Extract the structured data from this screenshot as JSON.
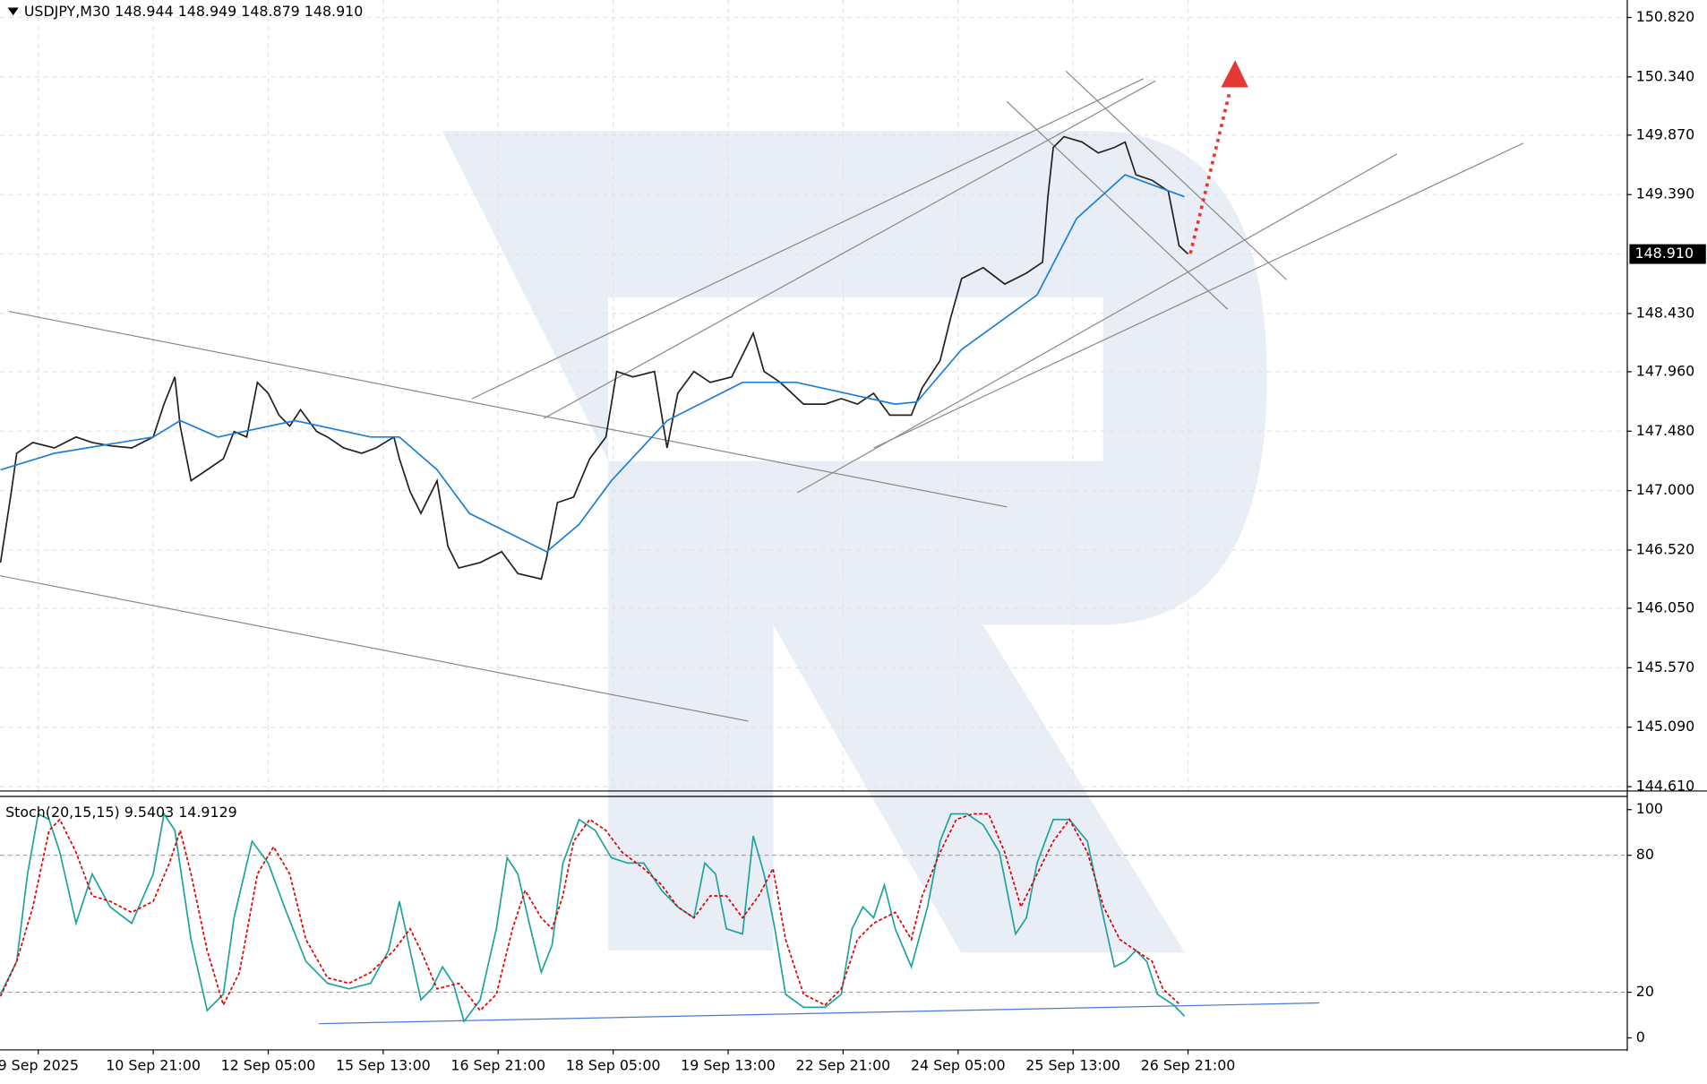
{
  "chart_data": [
    {
      "type": "line",
      "title": "USDJPY,M30  148.944 148.949 148.879 148.910",
      "grid": true,
      "xlim": [
        -21.3,
        884.5
      ],
      "ylim": [
        144.575,
        150.961
      ],
      "yticks": [
        {
          "value": 150.82,
          "label": "150.820"
        },
        {
          "value": 150.34,
          "label": "150.340"
        },
        {
          "value": 149.87,
          "label": "149.870"
        },
        {
          "value": 149.39,
          "label": "149.390"
        },
        {
          "value": 148.43,
          "label": "148.430"
        },
        {
          "value": 147.96,
          "label": "147.960"
        },
        {
          "value": 147.48,
          "label": "147.480"
        },
        {
          "value": 147,
          "label": "147.000"
        },
        {
          "value": 146.52,
          "label": "146.520"
        },
        {
          "value": 146.05,
          "label": "146.050"
        },
        {
          "value": 145.57,
          "label": "145.570"
        },
        {
          "value": 145.09,
          "label": "145.090"
        },
        {
          "value": 144.61,
          "label": "144.610"
        }
      ],
      "price_label": {
        "value": 148.91,
        "label": "148.910"
      },
      "series": [
        {
          "color": "#222222",
          "x": [
            -21,
            -15,
            -12,
            -3,
            9,
            21,
            30,
            40,
            52,
            64,
            70,
            76,
            79,
            85,
            94,
            103,
            109,
            116,
            122,
            128,
            134,
            140,
            146,
            155,
            161,
            170,
            180,
            188,
            198,
            201,
            207,
            213,
            222,
            228,
            234,
            246,
            258,
            267,
            280,
            283,
            289,
            298,
            307,
            316,
            322,
            331,
            343,
            350,
            356,
            365,
            374,
            386,
            398,
            404,
            413,
            426,
            438,
            447,
            456,
            465,
            474,
            486,
            492,
            502,
            508,
            514,
            526,
            538,
            550,
            559,
            562,
            565,
            571,
            581,
            590,
            599,
            605,
            611,
            620,
            629,
            635,
            640
          ],
          "values": [
            146.419,
            146.992,
            147.301,
            147.389,
            147.345,
            147.433,
            147.389,
            147.362,
            147.345,
            147.433,
            147.698,
            147.918,
            147.521,
            147.08,
            147.168,
            147.257,
            147.477,
            147.433,
            147.874,
            147.786,
            147.609,
            147.521,
            147.653,
            147.477,
            147.433,
            147.345,
            147.301,
            147.345,
            147.433,
            147.257,
            146.992,
            146.816,
            147.08,
            146.551,
            146.375,
            146.419,
            146.507,
            146.33,
            146.286,
            146.463,
            146.904,
            146.948,
            147.257,
            147.433,
            147.962,
            147.918,
            147.962,
            147.345,
            147.786,
            147.962,
            147.874,
            147.918,
            148.271,
            147.962,
            147.874,
            147.698,
            147.698,
            147.742,
            147.698,
            147.786,
            147.609,
            147.609,
            147.83,
            148.05,
            148.403,
            148.712,
            148.8,
            148.668,
            148.756,
            148.844,
            149.373,
            149.77,
            149.858,
            149.814,
            149.726,
            149.77,
            149.814,
            149.55,
            149.506,
            149.418,
            148.977,
            148.91
          ]
        },
        {
          "color": "#1e7fd6",
          "x": [
            -21,
            9,
            64,
            79,
            100,
            143,
            185,
            201,
            222,
            240,
            283,
            301,
            319,
            350,
            392,
            422,
            477,
            489,
            514,
            556,
            578,
            605,
            638
          ],
          "values": [
            147.168,
            147.301,
            147.433,
            147.565,
            147.433,
            147.565,
            147.433,
            147.433,
            147.168,
            146.816,
            146.507,
            146.727,
            147.08,
            147.565,
            147.874,
            147.874,
            147.698,
            147.715,
            148.139,
            148.58,
            149.197,
            149.55,
            149.373
          ]
        }
      ]
    },
    {
      "type": "line",
      "title": "Stoch(20,15,15) 9.5403 14.9129",
      "grid": false,
      "xlim": [
        -21.3,
        884.5
      ],
      "ylim": [
        -4.8,
        105.3
      ],
      "yticks": [
        0,
        20,
        80,
        100
      ],
      "levels": [
        20,
        80
      ],
      "xticks": [
        {
          "value": 0,
          "label": "9 Sep 2025"
        },
        {
          "value": 64,
          "label": "10 Sep 21:00"
        },
        {
          "value": 128,
          "label": "12 Sep 05:00"
        },
        {
          "value": 192,
          "label": "15 Sep 13:00"
        },
        {
          "value": 256,
          "label": "16 Sep 21:00"
        },
        {
          "value": 320,
          "label": "18 Sep 05:00"
        },
        {
          "value": 384,
          "label": "19 Sep 13:00"
        },
        {
          "value": 448,
          "label": "22 Sep 21:00"
        },
        {
          "value": 512,
          "label": "24 Sep 05:00"
        },
        {
          "value": 576,
          "label": "25 Sep 13:00"
        },
        {
          "value": 640,
          "label": "26 Sep 21:00"
        }
      ],
      "series": [
        {
          "color": "#20a39a",
          "x": [
            -21,
            -12,
            -6,
            0,
            6,
            12,
            21,
            30,
            40,
            52,
            64,
            70,
            76,
            85,
            94,
            103,
            109,
            119,
            128,
            137,
            149,
            161,
            173,
            185,
            195,
            201,
            207,
            213,
            219,
            225,
            231,
            237,
            246,
            255,
            261,
            267,
            274,
            280,
            286,
            292,
            301,
            310,
            319,
            328,
            337,
            347,
            356,
            365,
            371,
            377,
            383,
            392,
            398,
            404,
            410,
            416,
            426,
            438,
            447,
            453,
            459,
            465,
            471,
            477,
            486,
            495,
            502,
            508,
            517,
            526,
            535,
            544,
            550,
            556,
            565,
            574,
            584,
            593,
            599,
            605,
            611,
            617,
            623,
            632,
            638
          ],
          "values": [
            19.1,
            33.5,
            71.8,
            98.1,
            95.7,
            81.3,
            50.2,
            71.8,
            57.4,
            50.2,
            71.8,
            98.1,
            90.9,
            43.1,
            12.0,
            19.1,
            52.6,
            86.1,
            76.6,
            57.4,
            33.5,
            23.9,
            21.5,
            23.9,
            38.3,
            59.8,
            38.3,
            16.7,
            21.5,
            31.1,
            23.9,
            7.2,
            16.7,
            47.8,
            78.9,
            71.8,
            47.8,
            28.7,
            40.7,
            76.6,
            95.7,
            90.9,
            78.9,
            76.6,
            76.6,
            64.6,
            57.4,
            52.6,
            76.6,
            71.8,
            47.8,
            45.5,
            88.5,
            71.8,
            47.8,
            19.1,
            13.4,
            13.4,
            19.1,
            47.8,
            57.4,
            52.6,
            67.0,
            47.8,
            31.1,
            57.4,
            86.1,
            98.1,
            98.1,
            93.3,
            81.3,
            45.5,
            52.6,
            76.6,
            95.7,
            95.7,
            86.1,
            52.6,
            31.1,
            33.5,
            38.3,
            33.5,
            19.1,
            14.4,
            9.5
          ]
        },
        {
          "color": "#e00000",
          "dash": true,
          "x": [
            -21,
            -12,
            -3,
            6,
            12,
            21,
            30,
            40,
            52,
            64,
            73,
            79,
            85,
            94,
            103,
            112,
            122,
            131,
            140,
            149,
            161,
            173,
            185,
            198,
            207,
            213,
            222,
            234,
            246,
            255,
            264,
            271,
            280,
            286,
            292,
            298,
            307,
            316,
            325,
            337,
            347,
            356,
            365,
            374,
            383,
            392,
            401,
            409,
            416,
            426,
            438,
            447,
            456,
            465,
            477,
            486,
            492,
            502,
            511,
            520,
            529,
            538,
            547,
            556,
            565,
            574,
            584,
            593,
            602,
            611,
            620,
            626,
            635
          ],
          "values": [
            18.2,
            33.5,
            57.4,
            90.9,
            95.7,
            81.3,
            62.2,
            59.8,
            55.0,
            59.8,
            76.6,
            90.9,
            71.8,
            38.3,
            14.4,
            28.7,
            71.8,
            83.7,
            71.8,
            43.1,
            26.3,
            23.9,
            28.7,
            38.3,
            47.8,
            38.3,
            21.5,
            23.9,
            12.0,
            19.1,
            47.8,
            64.6,
            52.6,
            47.8,
            62.2,
            86.1,
            95.7,
            90.9,
            81.3,
            74.2,
            67.0,
            57.4,
            52.6,
            62.2,
            62.2,
            52.6,
            62.2,
            74.2,
            43.1,
            19.1,
            14.4,
            21.5,
            43.1,
            50.2,
            55.0,
            43.1,
            62.2,
            81.3,
            95.7,
            98.1,
            98.1,
            81.3,
            57.4,
            71.8,
            86.1,
            95.7,
            81.3,
            57.4,
            43.1,
            38.3,
            33.5,
            21.5,
            14.9
          ]
        }
      ]
    }
  ]
}
